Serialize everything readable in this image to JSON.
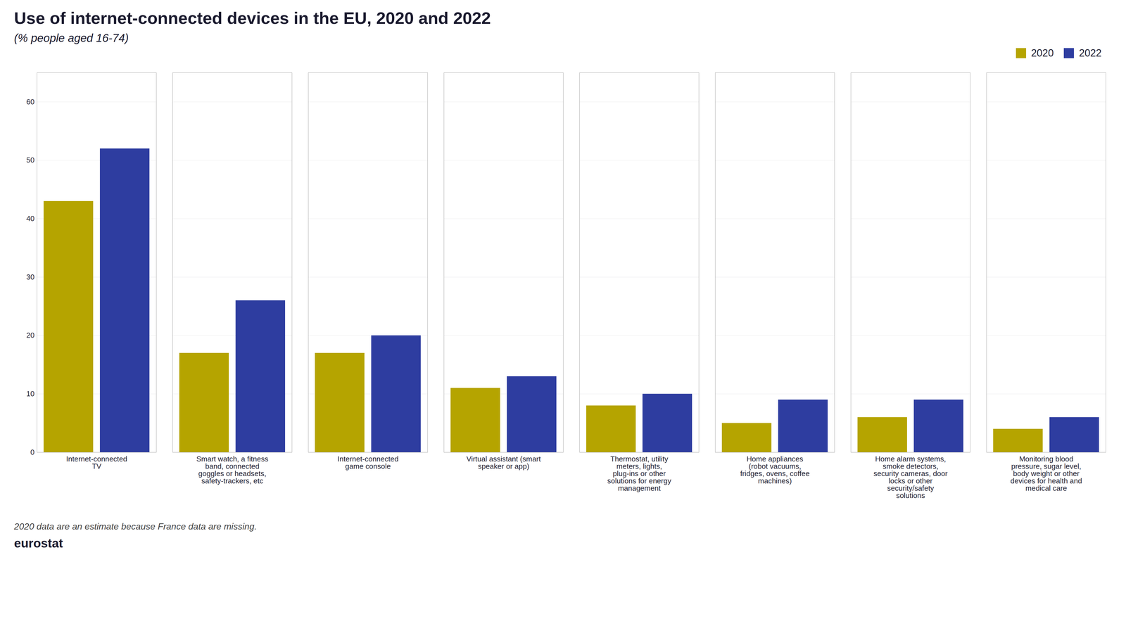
{
  "chart_data": {
    "type": "bar",
    "title": "Use of internet-connected devices in the EU, 2020 and 2022",
    "subtitle": "(% people aged 16-74)",
    "annotations": [
      "2020 data are an estimate because France data are missing.",
      "eurostat"
    ],
    "categories": [
      "Internet-connected\nTV",
      "Smart watch, a fitness\nband, connected\ngoggles or headsets,\nsafety-trackers, etc",
      "Internet-connected\ngame console",
      "Virtual assistant (smart\nspeaker or app)",
      "Thermostat, utility\nmeters, lights,\nplug-ins or other\nsolutions for energy\nmanagement",
      "Home appliances\n(robot vacuums,\nfridges, ovens, coffee\nmachines)",
      "Home alarm systems,\nsmoke detectors,\nsecurity cameras, door\nlocks or other\nsecurity/safety\nsolutions",
      "Monitoring blood\npressure, sugar level,\nbody weight or other\ndevices for health and\nmedical care"
    ],
    "series": [
      {
        "name": "2020",
        "color": "#B5A400",
        "values": [
          43,
          17,
          17,
          11,
          8,
          5,
          6,
          4
        ]
      },
      {
        "name": "2022",
        "color": "#2E3DA0",
        "values": [
          52,
          26,
          20,
          13,
          10,
          9,
          9,
          6
        ]
      }
    ],
    "ylim": [
      0,
      65
    ],
    "yticks": [
      0,
      10,
      20,
      30,
      40,
      50,
      60
    ],
    "grid": true,
    "legend": "top-right"
  }
}
